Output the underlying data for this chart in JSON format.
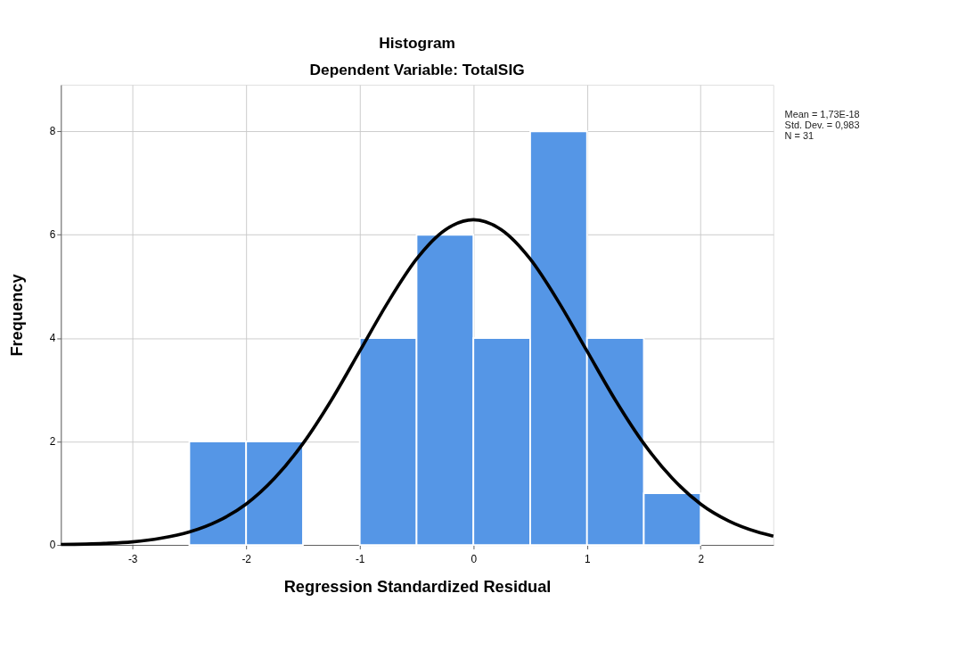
{
  "chart_data": {
    "type": "histogram",
    "title": "Histogram",
    "subtitle": "Dependent Variable: TotalSIG",
    "xlabel": "Regression Standardized Residual",
    "ylabel": "Frequency",
    "bins": [
      -2.5,
      -2.0,
      -1.5,
      -1.0,
      -0.5,
      0.0,
      0.5,
      1.0,
      1.5,
      2.0
    ],
    "values": [
      2,
      2,
      0,
      4,
      6,
      4,
      8,
      4,
      1
    ],
    "color": "#5596e6",
    "series": [
      {
        "type": "line",
        "color": "#000000",
        "x": [
          -3.63,
          -3.25,
          -3.0,
          -2.75,
          -2.5,
          -2.25,
          -2.0,
          -1.75,
          -1.5,
          -1.25,
          -1.0,
          -0.75,
          -0.5,
          -0.25,
          0.0,
          0.25,
          0.5,
          0.75,
          1.0,
          1.25,
          1.5,
          1.75,
          2.0,
          2.25,
          2.5,
          2.64
        ],
        "values": [
          0.01,
          0.03,
          0.06,
          0.13,
          0.25,
          0.46,
          0.79,
          1.29,
          1.96,
          2.8,
          3.75,
          4.7,
          5.53,
          6.09,
          6.29,
          6.09,
          5.53,
          4.7,
          3.75,
          2.8,
          1.96,
          1.29,
          0.79,
          0.46,
          0.25,
          0.17
        ]
      }
    ],
    "xlim": [
      -3.63,
      2.64
    ],
    "ylim": [
      0,
      8.9
    ],
    "xticks": [
      -3,
      -2,
      -1,
      0,
      1,
      2
    ],
    "yticks": [
      0,
      2,
      4,
      6,
      8
    ],
    "grid": true,
    "annotations": [
      "Mean = 1,73E-18",
      "Std. Dev. = 0,983",
      "N = 31"
    ]
  }
}
